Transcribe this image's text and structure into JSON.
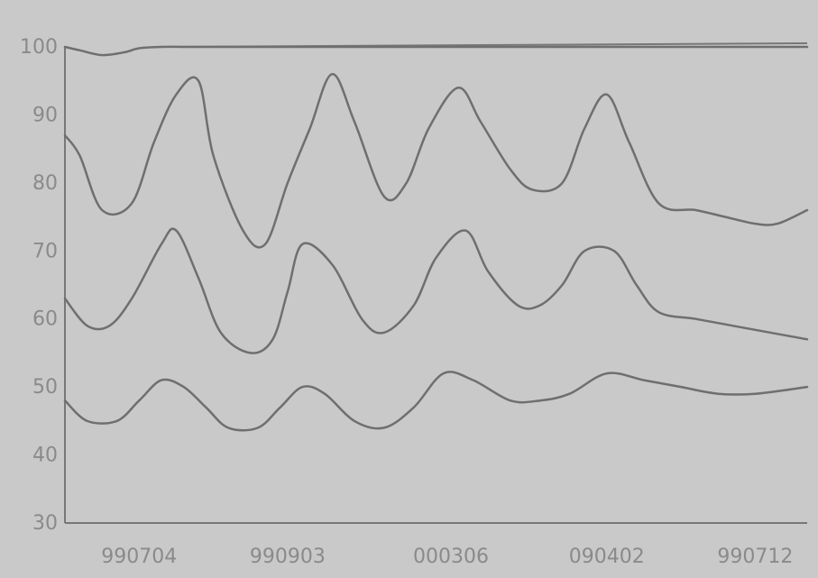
{
  "chart_data": {
    "type": "line",
    "title": "",
    "xlabel": "",
    "ylabel": "",
    "ylim": [
      30,
      100
    ],
    "yticks": [
      "100",
      "90",
      "80",
      "70",
      "60",
      "50",
      "40",
      "30"
    ],
    "xticks": [
      "990704",
      "990903",
      "000306",
      "090402",
      "990712"
    ],
    "grid": false,
    "legend": "none",
    "colors": {
      "background": "#c9c9c9",
      "axis": "#777777",
      "line": "#6f6f6f",
      "text": "#8a8a8a"
    },
    "series": [
      {
        "x": [
          0.0,
          0.02,
          0.05,
          0.09,
          0.12,
          0.15,
          0.18,
          0.2,
          0.24,
          0.27,
          0.3,
          0.33,
          0.36,
          0.39,
          0.43,
          0.46,
          0.49,
          0.53,
          0.56,
          0.6,
          0.63,
          0.67,
          0.7,
          0.73,
          0.76,
          0.8,
          0.85,
          0.89,
          0.93,
          0.96,
          1.0
        ],
        "y": [
          87,
          84,
          76,
          77,
          86,
          93,
          95,
          84,
          73,
          71,
          80,
          88,
          96,
          89,
          78,
          80,
          88,
          94,
          89,
          82,
          79,
          80,
          88,
          93,
          86,
          77,
          76,
          75,
          74,
          74,
          76
        ]
      },
      {
        "x": [
          0.0,
          0.03,
          0.06,
          0.09,
          0.13,
          0.15,
          0.18,
          0.21,
          0.25,
          0.28,
          0.3,
          0.32,
          0.36,
          0.4,
          0.43,
          0.47,
          0.5,
          0.54,
          0.57,
          0.61,
          0.64,
          0.67,
          0.7,
          0.74,
          0.77,
          0.8,
          0.85,
          0.9,
          0.95,
          1.0
        ],
        "y": [
          63,
          59,
          59,
          63,
          71,
          73,
          66,
          58,
          55,
          57,
          64,
          71,
          68,
          60,
          58,
          62,
          69,
          73,
          67,
          62,
          62,
          65,
          70,
          70,
          65,
          61,
          60,
          59,
          58,
          57
        ]
      },
      {
        "x": [
          0.0,
          0.03,
          0.07,
          0.1,
          0.13,
          0.16,
          0.19,
          0.22,
          0.26,
          0.29,
          0.32,
          0.35,
          0.39,
          0.43,
          0.47,
          0.51,
          0.55,
          0.6,
          0.64,
          0.68,
          0.73,
          0.78,
          0.83,
          0.88,
          0.93,
          1.0
        ],
        "y": [
          48,
          45,
          45,
          48,
          51,
          50,
          47,
          44,
          44,
          47,
          50,
          49,
          45,
          44,
          47,
          52,
          51,
          48,
          48,
          49,
          52,
          51,
          50,
          49,
          49,
          50
        ]
      },
      {
        "x": [
          0.0,
          0.02,
          0.05,
          0.08,
          0.1,
          0.13,
          0.16,
          0.2,
          0.25,
          0.35,
          0.5,
          0.7,
          0.85,
          1.0
        ],
        "y": [
          100,
          99.5,
          98.8,
          99.2,
          99.8,
          100,
          100,
          100,
          100,
          100,
          100,
          100,
          100,
          100
        ]
      }
    ]
  }
}
